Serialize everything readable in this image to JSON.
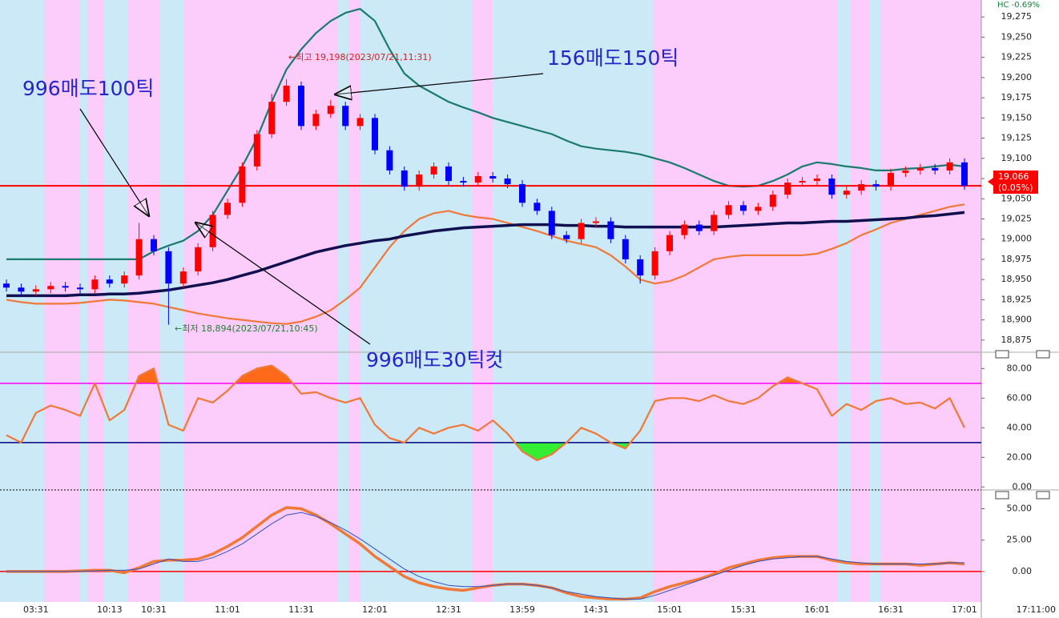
{
  "chart_data": [
    {
      "type": "candlestick",
      "header": "HC  -0.69%",
      "categories": [
        null,
        null,
        "03:31",
        null,
        null,
        null,
        null,
        "10:13",
        null,
        null,
        "10:31",
        null,
        null,
        null,
        null,
        "11:01",
        null,
        null,
        null,
        null,
        "11:31",
        null,
        null,
        null,
        null,
        "12:01",
        null,
        null,
        null,
        null,
        "12:31",
        null,
        null,
        null,
        null,
        "13:59",
        null,
        null,
        null,
        null,
        "14:31",
        null,
        null,
        null,
        null,
        "15:01",
        null,
        null,
        null,
        null,
        "15:31",
        null,
        null,
        null,
        null,
        "16:01",
        null,
        null,
        null,
        null,
        "16:31",
        null,
        null,
        null,
        null,
        "17:01"
      ],
      "time_now": "17:11:00",
      "open": [
        18945,
        18940,
        18935,
        18938,
        18942,
        18940,
        18938,
        18950,
        18945,
        18955,
        19000,
        18985,
        18945,
        18960,
        18990,
        19030,
        19045,
        19090,
        19130,
        19170,
        19190,
        19140,
        19155,
        19165,
        19140,
        19150,
        19110,
        19085,
        19065,
        19080,
        19090,
        19072,
        19070,
        19078,
        19075,
        19068,
        19045,
        19035,
        19005,
        19000,
        19020,
        19022,
        19000,
        18975,
        18955,
        18985,
        19005,
        19018,
        19010,
        19030,
        19042,
        19035,
        19040,
        19055,
        19070,
        19072,
        19075,
        19055,
        19060,
        19068,
        19065,
        19082,
        19085,
        19088,
        19085,
        19095
      ],
      "high": [
        18950,
        18945,
        18943,
        18947,
        18947,
        18945,
        18955,
        18955,
        18960,
        19020,
        19005,
        18990,
        18965,
        18995,
        19035,
        19050,
        19095,
        19135,
        19180,
        19198,
        19195,
        19160,
        19172,
        19170,
        19155,
        19155,
        19115,
        19090,
        19085,
        19095,
        19095,
        19077,
        19083,
        19083,
        19080,
        19073,
        19050,
        19040,
        19010,
        19025,
        19027,
        19027,
        19005,
        18980,
        18990,
        19010,
        19023,
        19023,
        19035,
        19047,
        19047,
        19045,
        19060,
        19075,
        19077,
        19080,
        19080,
        19065,
        19073,
        19073,
        19087,
        19090,
        19093,
        19093,
        19100,
        19100
      ],
      "low": [
        18935,
        18930,
        18930,
        18933,
        18935,
        18933,
        18933,
        18940,
        18940,
        18950,
        18980,
        18894,
        18940,
        18955,
        18985,
        19025,
        19040,
        19085,
        19125,
        19165,
        19135,
        19135,
        19150,
        19135,
        19135,
        19105,
        19080,
        19060,
        19060,
        19075,
        19067,
        19065,
        19065,
        19070,
        19063,
        19040,
        19030,
        19000,
        18995,
        18995,
        19015,
        18995,
        18970,
        18945,
        18950,
        18980,
        19000,
        19005,
        19005,
        19025,
        19030,
        19030,
        19035,
        19050,
        19065,
        19067,
        19050,
        19050,
        19055,
        19060,
        19060,
        19077,
        19080,
        19080,
        19080,
        19061
      ],
      "close": [
        18940,
        18935,
        18938,
        18942,
        18940,
        18938,
        18950,
        18945,
        18955,
        19000,
        18985,
        18945,
        18960,
        18990,
        19030,
        19045,
        19090,
        19130,
        19170,
        19190,
        19140,
        19155,
        19165,
        19140,
        19150,
        19110,
        19085,
        19065,
        19080,
        19090,
        19072,
        19070,
        19078,
        19075,
        19068,
        19045,
        19035,
        19005,
        19000,
        19020,
        19022,
        19000,
        18975,
        18955,
        18985,
        19005,
        19018,
        19010,
        19030,
        19042,
        19035,
        19040,
        19055,
        19070,
        19072,
        19075,
        19055,
        19060,
        19068,
        19065,
        19082,
        19085,
        19088,
        19085,
        19095,
        19066
      ],
      "up_color": "#ff0000",
      "down_color": "#0000ff",
      "overlays": [
        {
          "color": "#1a7a6e",
          "style": "medium",
          "values": [
            18975,
            18975,
            18975,
            18975,
            18975,
            18975,
            18975,
            18975,
            18975,
            18975,
            18985,
            18992,
            18998,
            19010,
            19030,
            19060,
            19090,
            19125,
            19170,
            19210,
            19235,
            19255,
            19270,
            19280,
            19285,
            19270,
            19235,
            19205,
            19190,
            19180,
            19170,
            19163,
            19157,
            19150,
            19145,
            19140,
            19135,
            19130,
            19122,
            19115,
            19112,
            19110,
            19108,
            19105,
            19100,
            19095,
            19088,
            19080,
            19072,
            19066,
            19065,
            19066,
            19072,
            19080,
            19090,
            19095,
            19093,
            19090,
            19088,
            19085,
            19085,
            19087,
            19088,
            19090,
            19092,
            19090
          ]
        },
        {
          "color": "#f07838",
          "style": "medium",
          "values": [
            18925,
            18922,
            18920,
            18920,
            18920,
            18921,
            18923,
            18925,
            18924,
            18922,
            18920,
            18916,
            18912,
            18908,
            18905,
            18902,
            18900,
            18898,
            18896,
            18895,
            18898,
            18904,
            18912,
            18925,
            18940,
            18965,
            18990,
            19010,
            19025,
            19032,
            19035,
            19030,
            19027,
            19025,
            19020,
            19015,
            19010,
            19004,
            18998,
            18994,
            18990,
            18980,
            18966,
            18950,
            18945,
            18948,
            18955,
            18965,
            18975,
            18978,
            18980,
            18980,
            18980,
            18980,
            18980,
            18982,
            18988,
            18995,
            19005,
            19012,
            19020,
            19025,
            19030,
            19035,
            19040,
            19043
          ]
        },
        {
          "color": "#101050",
          "style": "thick",
          "values": [
            18930,
            18930,
            18930,
            18930,
            18930,
            18931,
            18931,
            18932,
            18932,
            18933,
            18935,
            18937,
            18940,
            18943,
            18946,
            18950,
            18955,
            18960,
            18966,
            18972,
            18978,
            18984,
            18988,
            18992,
            18995,
            18998,
            19000,
            19004,
            19007,
            19010,
            19012,
            19014,
            19015,
            19016,
            19017,
            19018,
            19018,
            19018,
            19017,
            19017,
            19016,
            19016,
            19015,
            19015,
            19015,
            19015,
            19015,
            19015,
            19015,
            19016,
            19017,
            19018,
            19019,
            19020,
            19020,
            19021,
            19022,
            19022,
            19023,
            19024,
            19025,
            19026,
            19028,
            19029,
            19031,
            19033
          ]
        }
      ],
      "current_price": {
        "value": 19066,
        "label": "19,066",
        "change": "(0.05%)",
        "color": "#ff0000"
      },
      "ylim": [
        18860,
        19296
      ],
      "yticks": [
        {
          "value": 18875,
          "label": "18,875"
        },
        {
          "value": 18900,
          "label": "18,900"
        },
        {
          "value": 18925,
          "label": "18,925"
        },
        {
          "value": 18950,
          "label": "18,950"
        },
        {
          "value": 18975,
          "label": "18,975"
        },
        {
          "value": 19000,
          "label": "19,000"
        },
        {
          "value": 19025,
          "label": "19,025"
        },
        {
          "value": 19050,
          "label": "19,050"
        },
        {
          "value": 19075,
          "label": "19,075"
        },
        {
          "value": 19100,
          "label": "19,100"
        },
        {
          "value": 19125,
          "label": "19,125"
        },
        {
          "value": 19150,
          "label": "19,150"
        },
        {
          "value": 19175,
          "label": "19,175"
        },
        {
          "value": 19200,
          "label": "19,200"
        },
        {
          "value": 19225,
          "label": "19,225"
        },
        {
          "value": 19250,
          "label": "19,250"
        },
        {
          "value": 19275,
          "label": "19,275"
        }
      ],
      "annotations": [
        "←최고 19,198(2023/07/21,11:31)",
        "←최저 18,894(2023/07/21,10:45)",
        "996매도100틱",
        "156매도150틱",
        "996매도30틱컷"
      ]
    },
    {
      "type": "line",
      "series": [
        {
          "color": "#f07838",
          "style": "medium",
          "values": [
            35,
            30,
            50,
            55,
            52,
            48,
            70,
            45,
            52,
            75,
            80,
            42,
            38,
            60,
            57,
            65,
            75,
            80,
            82,
            75,
            63,
            64,
            60,
            57,
            60,
            42,
            33,
            30,
            40,
            36,
            40,
            42,
            38,
            45,
            36,
            24,
            18,
            22,
            30,
            40,
            36,
            30,
            26,
            38,
            58,
            60,
            60,
            58,
            62,
            58,
            56,
            60,
            68,
            74,
            70,
            66,
            48,
            56,
            52,
            58,
            60,
            56,
            57,
            53,
            60,
            40
          ]
        }
      ],
      "levels": [
        {
          "value": 70,
          "color": "#ff00ff",
          "fill": "#ff6a1a",
          "side": "above"
        },
        {
          "value": 30,
          "color": "#000080",
          "fill": "#33ee33",
          "side": "below"
        }
      ],
      "ylim": [
        -2,
        91
      ],
      "yticks": [
        {
          "value": 0,
          "label": "0.00"
        },
        {
          "value": 20,
          "label": "20.00"
        },
        {
          "value": 40,
          "label": "40.00"
        },
        {
          "value": 60,
          "label": "60.00"
        },
        {
          "value": 80,
          "label": "80.00"
        }
      ]
    },
    {
      "type": "line",
      "series": [
        {
          "color": "#f07838",
          "style": "thick",
          "values": [
            0,
            0,
            0,
            0,
            0,
            0.5,
            1,
            1,
            -1,
            3,
            8,
            9,
            9,
            10,
            14,
            20,
            27,
            36,
            45,
            51,
            50,
            45,
            38,
            30,
            22,
            12,
            4,
            -4,
            -9,
            -12,
            -14,
            -15,
            -13,
            -11,
            -10,
            -10,
            -11,
            -13,
            -17,
            -20,
            -21,
            -22,
            -22,
            -21,
            -16,
            -12,
            -9,
            -6,
            -2,
            3,
            6,
            9,
            11,
            12,
            12,
            12,
            9,
            7,
            6,
            6,
            6,
            6,
            5,
            6,
            7,
            6
          ]
        },
        {
          "color": "#3050c0",
          "style": "thin",
          "values": [
            0,
            0,
            0,
            0,
            0,
            0,
            0.5,
            1,
            1,
            2,
            6,
            10,
            8,
            8,
            11,
            16,
            22,
            30,
            38,
            45,
            47,
            44,
            39,
            33,
            26,
            18,
            10,
            2,
            -4,
            -8,
            -11,
            -12,
            -12,
            -11,
            -10,
            -10,
            -11,
            -13,
            -16,
            -18,
            -20,
            -21,
            -22,
            -22,
            -19,
            -15,
            -11,
            -7,
            -3,
            1,
            5,
            8,
            10,
            11,
            12,
            12,
            10,
            8,
            7,
            6,
            6,
            6,
            6,
            6,
            7,
            7
          ]
        }
      ],
      "levels": [
        {
          "value": 0,
          "color": "#ff0000"
        }
      ],
      "ylim": [
        -23,
        65
      ],
      "yticks": [
        {
          "value": 0,
          "label": "0.00"
        },
        {
          "value": 25,
          "label": "25.00"
        },
        {
          "value": 50,
          "label": "50.00"
        }
      ]
    }
  ]
}
